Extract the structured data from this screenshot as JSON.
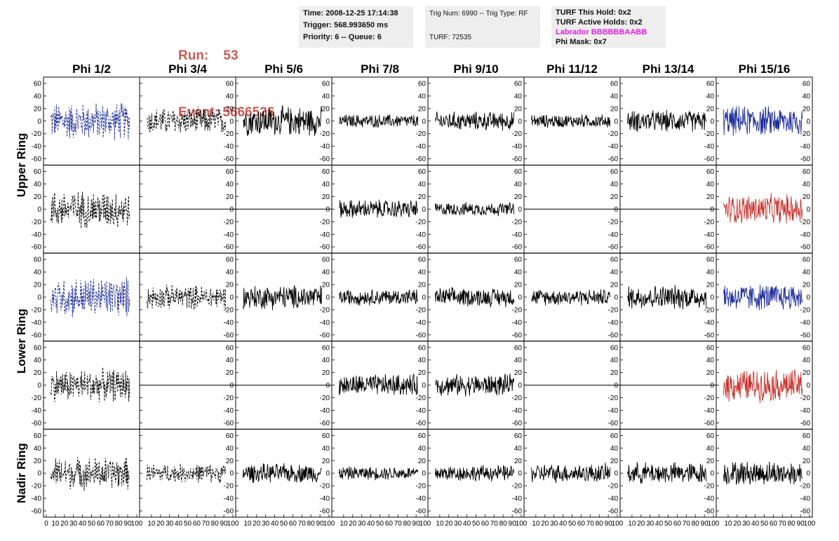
{
  "header": {
    "run_label": "Run:",
    "run_value": "53",
    "event_label": "Event:",
    "event_value": "5666526"
  },
  "info_box_1": {
    "time": "Time: 2008-12-25 17:14:38",
    "trigger": "Trigger: 568.993650 ms",
    "priority": "Priority: 6 -- Queue: 6"
  },
  "info_box_2": {
    "trig": "Trig Num: 6990 -- Trig Type: RF",
    "turf": "TURF: 72535"
  },
  "info_box_3": {
    "this_hold": "TURF This Hold: 0x2",
    "active_holds": "TURF Active Holds: 0x2",
    "labrador": "Labrador BBBBBBAABB",
    "phi_mask": "Phi Mask: 0x7"
  },
  "chart_data": {
    "type": "line",
    "columns": [
      "Phi 1/2",
      "Phi 3/4",
      "Phi 5/6",
      "Phi 7/8",
      "Phi 9/10",
      "Phi 11/12",
      "Phi 13/14",
      "Phi 15/16"
    ],
    "row_labels": [
      {
        "label": "Upper Ring",
        "rows": [
          0,
          1
        ]
      },
      {
        "label": "Lower Ring",
        "rows": [
          2,
          3
        ]
      },
      {
        "label": "Nadir Ring",
        "rows": [
          4
        ]
      }
    ],
    "ylim": [
      -70,
      70
    ],
    "xlim": [
      0,
      100
    ],
    "y_ticks": [
      -60,
      -40,
      -20,
      0,
      20,
      40,
      60
    ],
    "x_ticks": [
      0,
      10,
      20,
      30,
      40,
      50,
      60,
      70,
      80,
      90,
      100
    ],
    "colors": {
      "black": "#000000",
      "blue": "#1e2e9a",
      "red": "#c8322c"
    },
    "panels": [
      [
        {
          "color": "blue",
          "dashed": true,
          "amp": 28
        },
        {
          "color": "black",
          "dashed": true,
          "amp": 20
        },
        {
          "color": "black",
          "dashed": false,
          "amp": 22
        },
        {
          "color": "black",
          "dashed": false,
          "amp": 10
        },
        {
          "color": "black",
          "dashed": false,
          "amp": 14
        },
        {
          "color": "black",
          "dashed": false,
          "amp": 10
        },
        {
          "color": "black",
          "dashed": false,
          "amp": 16
        },
        {
          "color": "blue",
          "dashed": false,
          "amp": 22
        }
      ],
      [
        {
          "color": "black",
          "dashed": true,
          "amp": 28
        },
        {
          "color": "black",
          "dashed": false,
          "amp": 0
        },
        {
          "color": "black",
          "dashed": false,
          "amp": 0
        },
        {
          "color": "black",
          "dashed": false,
          "amp": 14
        },
        {
          "color": "black",
          "dashed": false,
          "amp": 10
        },
        {
          "color": "black",
          "dashed": false,
          "amp": 0
        },
        {
          "color": "black",
          "dashed": false,
          "amp": 0
        },
        {
          "color": "red",
          "dashed": false,
          "amp": 22
        }
      ],
      [
        {
          "color": "blue",
          "dashed": true,
          "amp": 30
        },
        {
          "color": "black",
          "dashed": true,
          "amp": 18
        },
        {
          "color": "black",
          "dashed": false,
          "amp": 18
        },
        {
          "color": "black",
          "dashed": false,
          "amp": 12
        },
        {
          "color": "black",
          "dashed": false,
          "amp": 14
        },
        {
          "color": "black",
          "dashed": false,
          "amp": 12
        },
        {
          "color": "black",
          "dashed": false,
          "amp": 18
        },
        {
          "color": "blue",
          "dashed": false,
          "amp": 20
        }
      ],
      [
        {
          "color": "black",
          "dashed": true,
          "amp": 24
        },
        {
          "color": "black",
          "dashed": false,
          "amp": 0
        },
        {
          "color": "black",
          "dashed": false,
          "amp": 0
        },
        {
          "color": "black",
          "dashed": false,
          "amp": 16
        },
        {
          "color": "black",
          "dashed": false,
          "amp": 16
        },
        {
          "color": "black",
          "dashed": false,
          "amp": 0
        },
        {
          "color": "black",
          "dashed": false,
          "amp": 0
        },
        {
          "color": "red",
          "dashed": false,
          "amp": 24
        }
      ],
      [
        {
          "color": "black",
          "dashed": true,
          "amp": 24
        },
        {
          "color": "black",
          "dashed": true,
          "amp": 14
        },
        {
          "color": "black",
          "dashed": false,
          "amp": 14
        },
        {
          "color": "black",
          "dashed": false,
          "amp": 10
        },
        {
          "color": "black",
          "dashed": false,
          "amp": 12
        },
        {
          "color": "black",
          "dashed": false,
          "amp": 14
        },
        {
          "color": "black",
          "dashed": false,
          "amp": 16
        },
        {
          "color": "black",
          "dashed": false,
          "amp": 18
        }
      ]
    ]
  }
}
